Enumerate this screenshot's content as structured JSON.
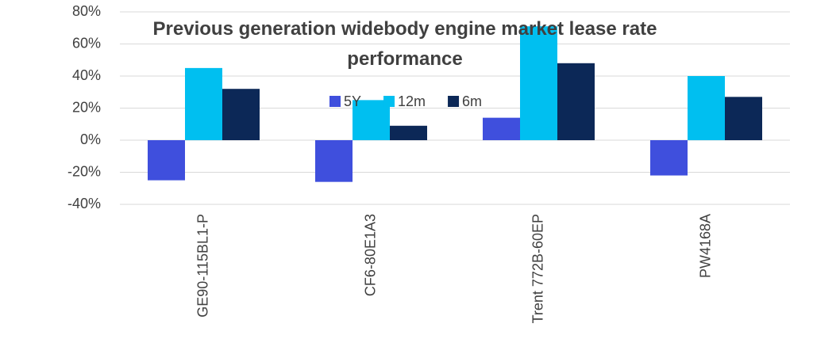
{
  "chart_data": {
    "type": "bar",
    "title": "Previous generation widebody engine market lease rate performance",
    "categories": [
      "GE90-115BL1-P",
      "CF6-80E1A3",
      "Trent 772B-60EP",
      "PW4168A"
    ],
    "series": [
      {
        "name": "5Y",
        "color": "#3f4fdd",
        "values": [
          -25,
          -26,
          14,
          -22
        ]
      },
      {
        "name": "12m",
        "color": "#00bff0",
        "values": [
          45,
          25,
          71,
          40
        ]
      },
      {
        "name": "6m",
        "color": "#0c2857",
        "values": [
          32,
          9,
          48,
          27
        ]
      }
    ],
    "ylim": [
      -40,
      80
    ],
    "yticks": [
      {
        "value": -40,
        "label": "-40%"
      },
      {
        "value": -20,
        "label": "-20%"
      },
      {
        "value": 0,
        "label": "0%"
      },
      {
        "value": 20,
        "label": "20%"
      },
      {
        "value": 40,
        "label": "40%"
      },
      {
        "value": 60,
        "label": "60%"
      },
      {
        "value": 80,
        "label": "80%"
      }
    ],
    "grid": true,
    "legend_position": "top"
  }
}
